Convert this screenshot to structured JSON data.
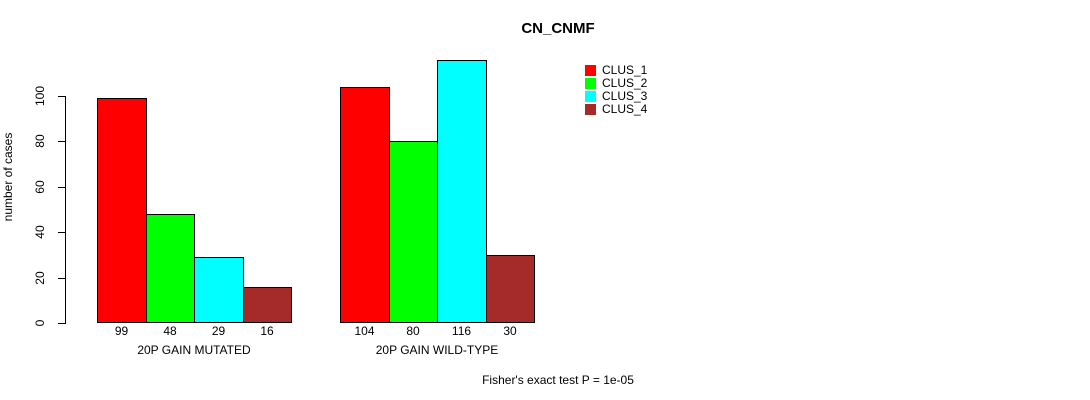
{
  "chart_data": {
    "type": "bar",
    "title": "CN_CNMF",
    "ylabel": "number of cases",
    "xlabel": "",
    "categories": [
      "20P GAIN MUTATED",
      "20P GAIN WILD-TYPE"
    ],
    "series": [
      {
        "name": "CLUS_1",
        "color": "#FF0000",
        "values": [
          99,
          104
        ]
      },
      {
        "name": "CLUS_2",
        "color": "#00FF00",
        "values": [
          48,
          80
        ]
      },
      {
        "name": "CLUS_3",
        "color": "#00FFFF",
        "values": [
          29,
          116
        ]
      },
      {
        "name": "CLUS_4",
        "color": "#A52A2A",
        "values": [
          16,
          30
        ]
      }
    ],
    "yticks": [
      0,
      20,
      40,
      60,
      80,
      100
    ],
    "ylim": [
      0,
      120
    ],
    "grid": false,
    "legend_position": "top-right",
    "bar_value_labels": true,
    "annotation": "Fisher's exact test P = 1e-05",
    "background": "#FFFFFF"
  }
}
